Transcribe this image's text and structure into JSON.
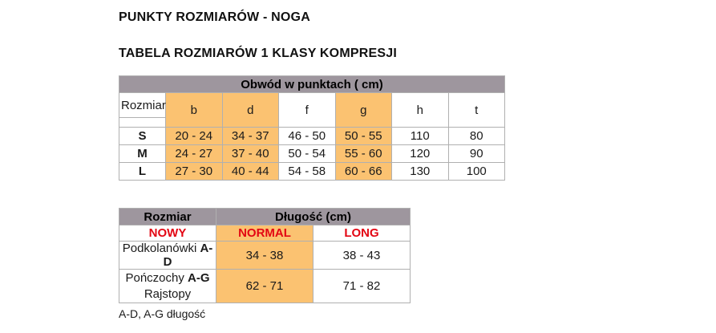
{
  "page": {
    "title1": "PUNKTY ROZMIARÓW - NOGA",
    "title2": "TABELA ROZMIARÓW 1 KLASY KOMPRESJI",
    "footnote": "A-D, A-G długość"
  },
  "colors": {
    "header_bg": "#9e969e",
    "highlight_bg": "#fbc271",
    "accent_red": "#e30613",
    "border": "#b0b0b0"
  },
  "table1": {
    "header": "Obwód w punktach ( cm)",
    "row_label_header": "Rozmiar",
    "columns": [
      {
        "label": "b",
        "highlight": true
      },
      {
        "label": "d",
        "highlight": true
      },
      {
        "label": "f",
        "highlight": false
      },
      {
        "label": "g",
        "highlight": true
      },
      {
        "label": "h",
        "highlight": false
      },
      {
        "label": "t",
        "highlight": false
      }
    ],
    "rows": [
      {
        "size": "S",
        "values": [
          "20 - 24",
          "34 - 37",
          "46 - 50",
          "50 - 55",
          "110",
          "80"
        ]
      },
      {
        "size": "M",
        "values": [
          "24 - 27",
          "37 - 40",
          "50 - 54",
          "55 - 60",
          "120",
          "90"
        ]
      },
      {
        "size": "L",
        "values": [
          "27 - 30",
          "40 - 44",
          "54 - 58",
          "60 - 66",
          "130",
          "100"
        ]
      }
    ]
  },
  "table2": {
    "col1_header": "Rozmiar",
    "col2_header": "Długość (cm)",
    "subheaders": [
      "NOWY",
      "NORMAL",
      "LONG"
    ],
    "rows": [
      {
        "label_regular": "Podkolanówki ",
        "label_bold": "A-D",
        "label_line2": "",
        "normal": "34 - 38",
        "long": "38 - 43"
      },
      {
        "label_regular": "Pończochy ",
        "label_bold": "A-G",
        "label_line2": "Rajstopy",
        "normal": "62 - 71",
        "long": "71 - 82"
      }
    ]
  }
}
